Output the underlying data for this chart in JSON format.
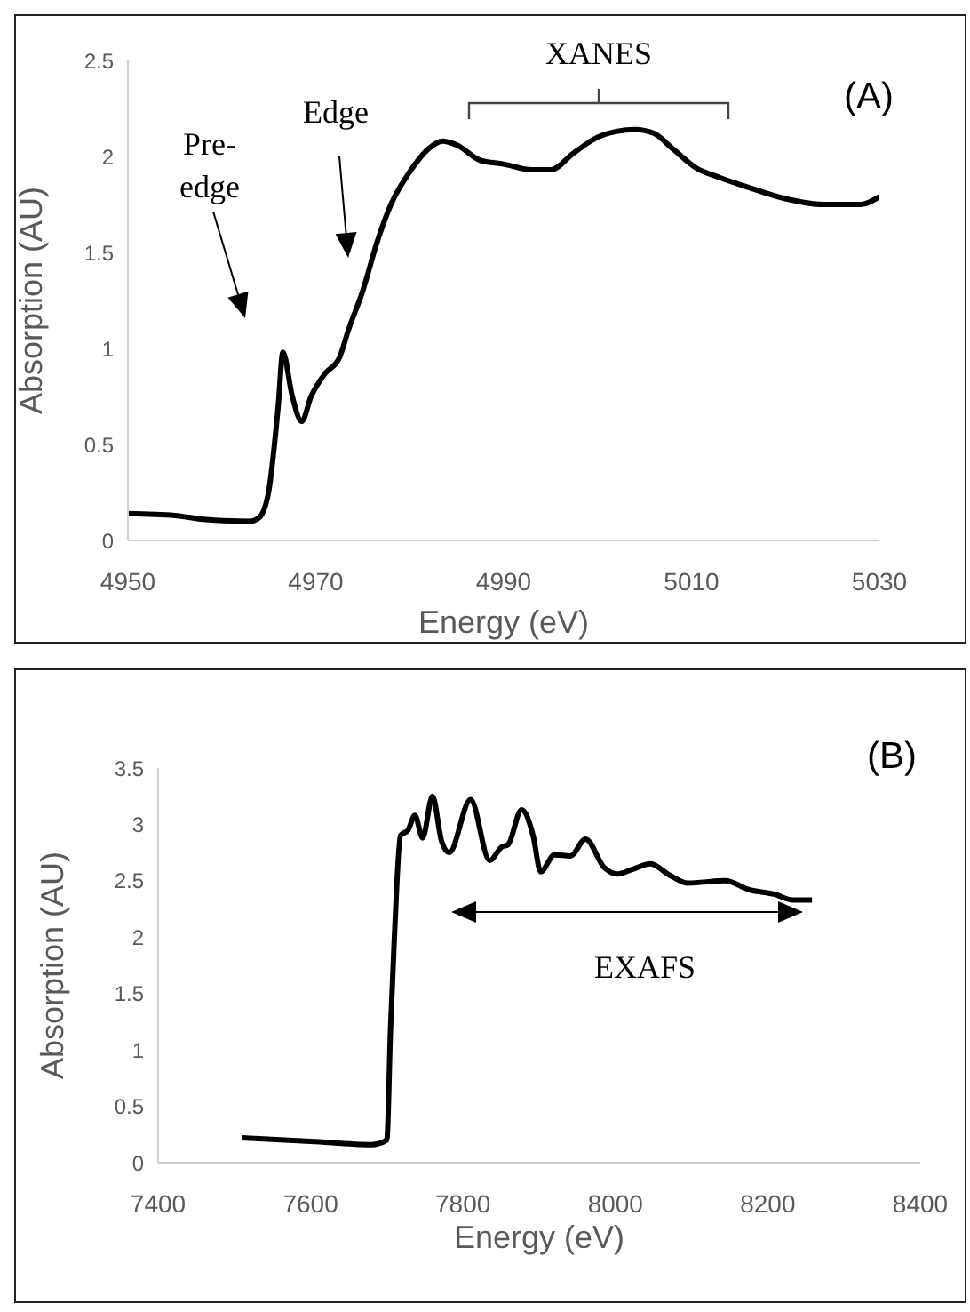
{
  "chart_data": [
    {
      "type": "line",
      "title": "(A)",
      "xlabel": "Energy (eV)",
      "ylabel": "Absorption (AU)",
      "xlim": [
        4950,
        5030
      ],
      "xticks": [
        4950,
        4970,
        4990,
        5010,
        5030
      ],
      "ylim": [
        0,
        2.5
      ],
      "yticks": [
        0,
        0.5,
        1,
        1.5,
        2,
        2.5
      ],
      "marker": "none",
      "line_style": "solid",
      "x": [
        4950,
        4955,
        4958,
        4963,
        4964,
        4965,
        4966,
        4966.5,
        4967.5,
        4968.5,
        4969.5,
        4971,
        4972.5,
        4973.5,
        4975,
        4976.5,
        4978,
        4980,
        4982,
        4983.5,
        4985,
        4987.5,
        4990,
        4993,
        4995,
        4997.5,
        5000,
        5002,
        5004,
        5006,
        5008,
        5010.5,
        5013,
        5016,
        5020,
        5024,
        5028,
        5030
      ],
      "series": [
        {
          "color": "#000000",
          "values": [
            0.14,
            0.13,
            0.11,
            0.1,
            0.12,
            0.26,
            0.7,
            0.98,
            0.75,
            0.62,
            0.75,
            0.87,
            0.95,
            1.1,
            1.3,
            1.55,
            1.75,
            1.92,
            2.04,
            2.08,
            2.06,
            1.98,
            1.96,
            1.93,
            1.93,
            2.02,
            2.1,
            2.13,
            2.14,
            2.12,
            2.04,
            1.94,
            1.89,
            1.84,
            1.78,
            1.75,
            1.75,
            1.79
          ]
        }
      ],
      "annotations": [
        "Pre-\nedge",
        "Edge",
        "XANES"
      ]
    },
    {
      "type": "line",
      "title": "(B)",
      "xlabel": "Energy (eV)",
      "ylabel": "Absorption (AU)",
      "xlim": [
        7400,
        8400
      ],
      "xticks": [
        7400,
        7600,
        7800,
        8000,
        8200,
        8400
      ],
      "ylim": [
        0,
        3.5
      ],
      "yticks": [
        0,
        0.5,
        1,
        1.5,
        2,
        2.5,
        3,
        3.5
      ],
      "marker": "none",
      "line_style": "solid",
      "x": [
        7510,
        7600,
        7680,
        7700,
        7705,
        7710,
        7718,
        7728,
        7737,
        7747,
        7760,
        7772,
        7782,
        7810,
        7835,
        7851,
        7859,
        7877,
        7892,
        7902,
        7920,
        7941,
        7961,
        7985,
        8002,
        8022,
        8046,
        8071,
        8095,
        8144,
        8176,
        8209,
        8233,
        8258
      ],
      "series": [
        {
          "color": "#000000",
          "values": [
            0.22,
            0.19,
            0.16,
            0.2,
            1.2,
            2.0,
            2.9,
            2.95,
            3.08,
            2.88,
            3.25,
            2.85,
            2.75,
            3.22,
            2.68,
            2.8,
            2.82,
            3.13,
            2.9,
            2.58,
            2.73,
            2.72,
            2.87,
            2.62,
            2.56,
            2.6,
            2.65,
            2.55,
            2.48,
            2.5,
            2.42,
            2.38,
            2.33,
            2.33
          ]
        }
      ],
      "annotations": [
        "EXAFS"
      ]
    }
  ]
}
